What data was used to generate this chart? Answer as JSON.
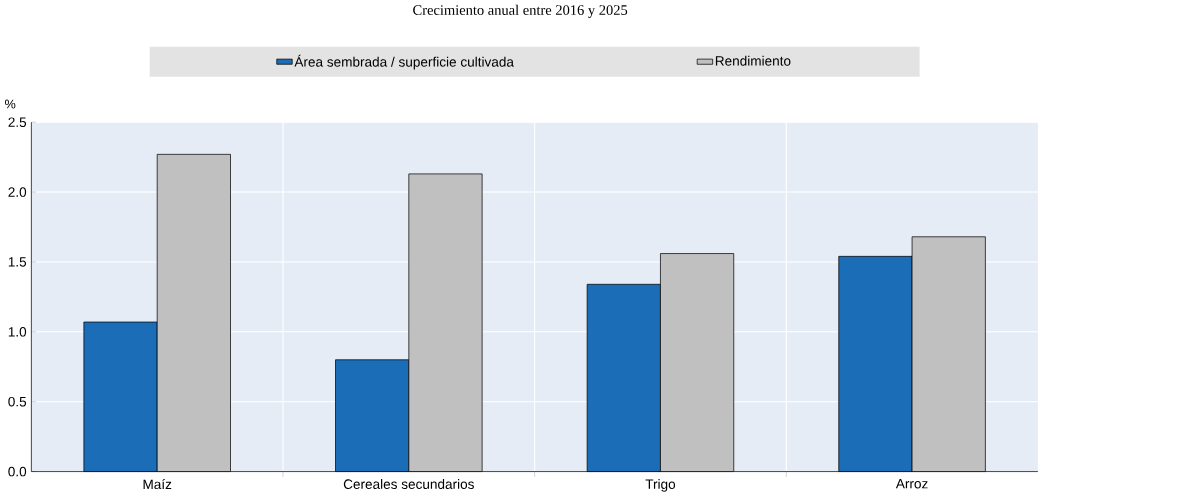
{
  "chart_data": {
    "type": "bar",
    "title": "Crecimiento anual entre 2016 y 2025",
    "ylabel": "%",
    "categories": [
      "Maíz",
      "Cereales secundarios",
      "Trigo",
      "Arroz"
    ],
    "series": [
      {
        "name": "Área sembrada / superficie cultivada",
        "color": "#1a6db6",
        "values": [
          1.07,
          0.8,
          1.34,
          1.54
        ]
      },
      {
        "name": "Rendimiento",
        "color": "#c0c0c0",
        "values": [
          2.27,
          2.13,
          1.56,
          1.68
        ]
      }
    ],
    "ylim": [
      0,
      2.5
    ],
    "yticks": [
      {
        "value": 0,
        "label": "0.0"
      },
      0.5,
      {
        "value": 1,
        "label": "1.0"
      },
      1.5,
      {
        "value": 2,
        "label": "2.0"
      },
      2.5
    ],
    "grid": true,
    "legend": "top"
  }
}
